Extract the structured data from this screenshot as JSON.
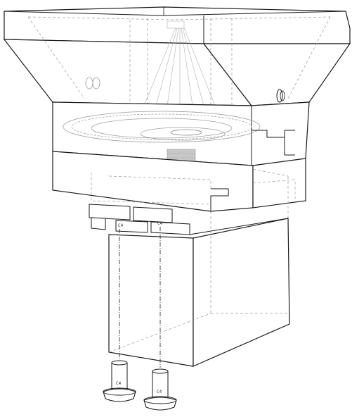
{
  "diagram": {
    "fastener_labels": [
      "C4",
      "C4"
    ],
    "screw_labels": [
      "C4",
      "C4"
    ],
    "colors": {
      "outline": "#1a1a1a",
      "hidden_line": "#9a9a9a",
      "shade": "#c8c8c8",
      "fill": "#ffffff"
    },
    "parts": [
      "hopper-funnel",
      "gear-ring-housing",
      "base-plate",
      "mounting-tabs",
      "servo-body",
      "screw-left",
      "screw-right"
    ]
  }
}
